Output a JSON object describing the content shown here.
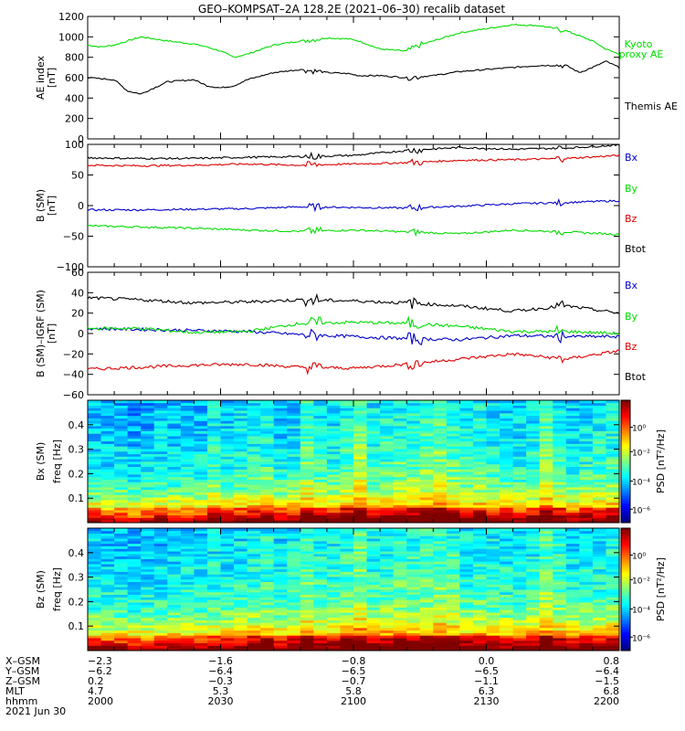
{
  "title": "GEO–KOMPSAT–2A 128.2E (2021–06–30) recalib dataset",
  "colors": {
    "black": "#000000",
    "red": "#dd0000",
    "green": "#00dd00",
    "blue": "#0000cc"
  },
  "chart_data": [
    {
      "type": "line",
      "panel": "AE index",
      "ylabel": [
        "AE index",
        "[nT]"
      ],
      "ylim": [
        0,
        1200
      ],
      "yticks": [
        0,
        200,
        400,
        600,
        800,
        1000,
        1200
      ],
      "xlim": [
        2000,
        2200
      ],
      "grid": false,
      "series": [
        {
          "name": "Kyoto proxy AE",
          "label_lines": [
            "Kyoto",
            "proxy AE"
          ],
          "color": "green",
          "x": [
            2000,
            2005,
            2010,
            2015,
            2020,
            2030,
            2040,
            2045,
            2050,
            2055,
            2060,
            2070,
            2080,
            2090,
            2098,
            2102,
            2110,
            2120,
            2125,
            2130,
            2135,
            2140,
            2150,
            2160,
            2170,
            2180,
            2190,
            2195,
            2200
          ],
          "y": [
            920,
            900,
            920,
            960,
            1000,
            960,
            930,
            900,
            860,
            800,
            830,
            920,
            960,
            990,
            980,
            960,
            880,
            860,
            920,
            960,
            1000,
            1040,
            1080,
            1120,
            1110,
            1060,
            960,
            880,
            830
          ]
        },
        {
          "name": "Themis AE",
          "label_lines": [
            "Themis AE"
          ],
          "color": "black",
          "x": [
            2000,
            2005,
            2010,
            2015,
            2020,
            2030,
            2040,
            2045,
            2050,
            2055,
            2060,
            2070,
            2080,
            2090,
            2098,
            2102,
            2110,
            2120,
            2130,
            2140,
            2150,
            2160,
            2170,
            2180,
            2185,
            2190,
            2195,
            2200
          ],
          "y": [
            600,
            590,
            580,
            470,
            440,
            560,
            580,
            520,
            500,
            520,
            580,
            650,
            680,
            650,
            640,
            620,
            620,
            600,
            620,
            660,
            680,
            700,
            720,
            720,
            650,
            700,
            760,
            700
          ]
        }
      ]
    },
    {
      "type": "line",
      "panel": "B (SM)",
      "ylabel": [
        "B (SM)",
        "[nT]"
      ],
      "ylim": [
        -100,
        100
      ],
      "yticks": [
        -100,
        -50,
        0,
        50,
        100
      ],
      "xlim": [
        2000,
        2200
      ],
      "grid": false,
      "series": [
        {
          "name": "Bx",
          "color": "blue",
          "x": [
            2000,
            2020,
            2040,
            2060,
            2080,
            2100,
            2120,
            2140,
            2160,
            2180,
            2200
          ],
          "y": [
            -7,
            -7,
            -6,
            -5,
            -2,
            -3,
            -4,
            -1,
            3,
            5,
            8
          ]
        },
        {
          "name": "By",
          "color": "green",
          "x": [
            2000,
            2020,
            2040,
            2060,
            2080,
            2100,
            2120,
            2140,
            2160,
            2180,
            2200
          ],
          "y": [
            -33,
            -35,
            -37,
            -40,
            -42,
            -40,
            -43,
            -46,
            -40,
            -43,
            -47
          ]
        },
        {
          "name": "Bz",
          "color": "red",
          "x": [
            2000,
            2020,
            2040,
            2060,
            2080,
            2100,
            2120,
            2140,
            2160,
            2180,
            2200
          ],
          "y": [
            66,
            65,
            66,
            68,
            66,
            68,
            70,
            74,
            75,
            77,
            82
          ]
        },
        {
          "name": "Btot",
          "color": "black",
          "x": [
            2000,
            2020,
            2040,
            2060,
            2080,
            2100,
            2120,
            2140,
            2160,
            2180,
            2200
          ],
          "y": [
            78,
            77,
            77,
            79,
            80,
            82,
            90,
            95,
            92,
            94,
            99
          ]
        }
      ]
    },
    {
      "type": "line",
      "panel": "B (SM)-IGRF (SM)",
      "ylabel": [
        "B (SM)–IGRF (SM)",
        "[nT]"
      ],
      "ylim": [
        -60,
        60
      ],
      "yticks": [
        -60,
        -40,
        -20,
        0,
        20,
        40,
        60
      ],
      "xlim": [
        2000,
        2200
      ],
      "grid": false,
      "series": [
        {
          "name": "Bx",
          "color": "blue",
          "x": [
            2000,
            2020,
            2040,
            2060,
            2080,
            2100,
            2120,
            2140,
            2160,
            2180,
            2200
          ],
          "y": [
            5,
            4,
            3,
            2,
            -1,
            -3,
            -5,
            -6,
            -2,
            -3,
            -3
          ]
        },
        {
          "name": "By",
          "color": "green",
          "x": [
            2000,
            2020,
            2040,
            2060,
            2080,
            2100,
            2120,
            2140,
            2160,
            2180,
            2200
          ],
          "y": [
            5,
            5,
            1,
            2,
            10,
            11,
            10,
            7,
            2,
            2,
            0
          ]
        },
        {
          "name": "Bz",
          "color": "red",
          "x": [
            2000,
            2020,
            2040,
            2060,
            2080,
            2100,
            2120,
            2140,
            2160,
            2180,
            2200
          ],
          "y": [
            -35,
            -33,
            -31,
            -30,
            -33,
            -34,
            -30,
            -25,
            -20,
            -25,
            -17
          ]
        },
        {
          "name": "Btot",
          "color": "black",
          "x": [
            2000,
            2020,
            2040,
            2060,
            2080,
            2100,
            2120,
            2140,
            2160,
            2180,
            2200
          ],
          "y": [
            35,
            33,
            30,
            31,
            33,
            32,
            30,
            27,
            22,
            27,
            20
          ]
        }
      ]
    },
    {
      "type": "heatmap",
      "panel": "Bx (SM)",
      "ylabel": [
        "Bx (SM)",
        "freq [Hz]"
      ],
      "ylim": [
        0,
        0.5
      ],
      "yticks": [
        0.1,
        0.2,
        0.3,
        0.4
      ],
      "xlim": [
        2000,
        2200
      ],
      "colorbar": {
        "label": "PSD [nT²/Hz]",
        "scale": "log",
        "ticks": [
          "10⁰",
          "10⁻²",
          "10⁻⁴",
          "10⁻⁶"
        ]
      },
      "bins": [
        2000,
        2005,
        2010,
        2015,
        2020,
        2025,
        2030,
        2035,
        2040,
        2045,
        2050,
        2055,
        2060,
        2065,
        2070,
        2075,
        2080,
        2085,
        2090,
        2095,
        2100,
        2105,
        2110,
        2115,
        2120,
        2125,
        2130,
        2135,
        2140,
        2145,
        2150,
        2155,
        2160,
        2165,
        2170,
        2175,
        2180,
        2185,
        2190,
        2195
      ],
      "activity": [
        0.3,
        0.2,
        0.25,
        0.15,
        0.2,
        0.3,
        0.25,
        0.3,
        0.3,
        0.5,
        0.35,
        0.4,
        0.45,
        0.55,
        0.3,
        0.4,
        0.75,
        0.5,
        0.45,
        0.6,
        0.95,
        0.5,
        0.55,
        0.65,
        0.6,
        0.75,
        0.85,
        0.65,
        0.5,
        0.55,
        0.45,
        0.4,
        0.35,
        0.45,
        0.8,
        0.55,
        0.35,
        0.45,
        0.5,
        0.55
      ]
    },
    {
      "type": "heatmap",
      "panel": "Bz (SM)",
      "ylabel": [
        "Bz (SM)",
        "freq [Hz]"
      ],
      "ylim": [
        0,
        0.5
      ],
      "yticks": [
        0.1,
        0.2,
        0.3,
        0.4
      ],
      "xlim": [
        2000,
        2200
      ],
      "colorbar": {
        "label": "PSD [nT²/Hz]",
        "scale": "log",
        "ticks": [
          "10⁰",
          "10⁻²",
          "10⁻⁴",
          "10⁻⁶"
        ]
      },
      "bins": [
        2000,
        2005,
        2010,
        2015,
        2020,
        2025,
        2030,
        2035,
        2040,
        2045,
        2050,
        2055,
        2060,
        2065,
        2070,
        2075,
        2080,
        2085,
        2090,
        2095,
        2100,
        2105,
        2110,
        2115,
        2120,
        2125,
        2130,
        2135,
        2140,
        2145,
        2150,
        2155,
        2160,
        2165,
        2170,
        2175,
        2180,
        2185,
        2190,
        2195
      ],
      "activity": [
        0.35,
        0.3,
        0.3,
        0.25,
        0.3,
        0.3,
        0.35,
        0.4,
        0.35,
        0.45,
        0.4,
        0.45,
        0.55,
        0.6,
        0.4,
        0.5,
        0.8,
        0.55,
        0.5,
        0.65,
        0.9,
        0.55,
        0.6,
        0.7,
        0.65,
        0.75,
        0.8,
        0.7,
        0.5,
        0.55,
        0.5,
        0.45,
        0.45,
        0.5,
        0.85,
        0.6,
        0.45,
        0.5,
        0.5,
        0.55
      ]
    }
  ],
  "orbit_table": {
    "row_labels": [
      "X–GSM",
      "Y–GSM",
      "Z–GSM",
      "MLT",
      "hhmm"
    ],
    "columns": [
      [
        "−2.3",
        "−6.2",
        "0.2",
        "4.7",
        "2000"
      ],
      [
        "−1.6",
        "−6.4",
        "−0.3",
        "5.3",
        "2030"
      ],
      [
        "−0.8",
        "−6.5",
        "−0.7",
        "5.8",
        "2100"
      ],
      [
        "0.0",
        "−6.5",
        "−1.1",
        "6.3",
        "2130"
      ],
      [
        "0.8",
        "−6.4",
        "−1.5",
        "6.8",
        "2200"
      ]
    ],
    "date": "2021 Jun 30"
  }
}
